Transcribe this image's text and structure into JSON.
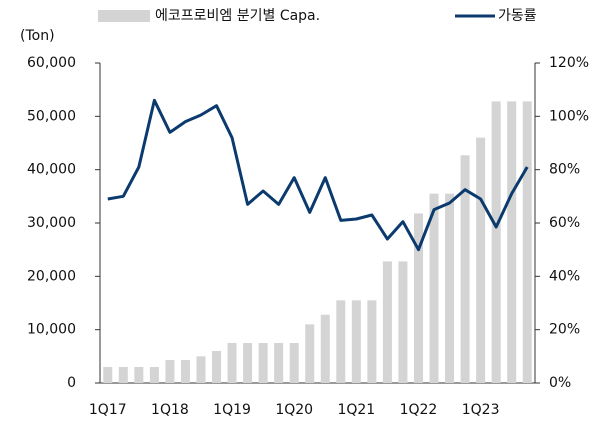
{
  "chart_data": {
    "type": "bar_line",
    "y_unit_label": "(Ton)",
    "categories": [
      "1Q17",
      null,
      null,
      null,
      "1Q18",
      null,
      null,
      null,
      "1Q19",
      null,
      null,
      null,
      "1Q20",
      null,
      null,
      null,
      "1Q21",
      null,
      null,
      null,
      "1Q22",
      null,
      null,
      null,
      "1Q23",
      null,
      null,
      null
    ],
    "series": [
      {
        "name": "에코프로비엠 분기별 Capa.",
        "color": "#d4d4d4",
        "kind": "bar",
        "axis": "y",
        "values": [
          3000,
          3000,
          3000,
          3000,
          4300,
          4300,
          5000,
          6000,
          7500,
          7500,
          7500,
          7500,
          7500,
          11000,
          12800,
          15500,
          15500,
          15500,
          22800,
          22800,
          31800,
          35500,
          35500,
          42700,
          46000,
          52800,
          52800,
          52800
        ]
      },
      {
        "name": "가동률",
        "color": "#0b3a6e",
        "kind": "line",
        "axis": "y2",
        "values": [
          69,
          70,
          81,
          106,
          94,
          98,
          100.5,
          104,
          92,
          67,
          72,
          67,
          77,
          64,
          77,
          61,
          61.5,
          63,
          54,
          60.5,
          50,
          65,
          67.5,
          72.5,
          69,
          58.5,
          71,
          81
        ]
      }
    ],
    "ylim": [
      0,
      60000
    ],
    "yticks": [
      0,
      {
        "value": 10000,
        "label": "10,000"
      },
      {
        "value": 20000,
        "label": "20,000"
      },
      {
        "value": 30000,
        "label": "30,000"
      },
      {
        "value": 40000,
        "label": "40,000"
      },
      {
        "value": 50000,
        "label": "50,000"
      },
      {
        "value": 60000,
        "label": "60,000"
      }
    ],
    "y2lim": [
      0,
      120
    ],
    "y2ticks": [
      {
        "value": 0,
        "label": "0%"
      },
      {
        "value": 20,
        "label": "20%"
      },
      {
        "value": 40,
        "label": "40%"
      },
      {
        "value": 60,
        "label": "60%"
      },
      {
        "value": 80,
        "label": "80%"
      },
      {
        "value": 100,
        "label": "100%"
      },
      {
        "value": 120,
        "label": "120%"
      }
    ],
    "grid": false
  }
}
